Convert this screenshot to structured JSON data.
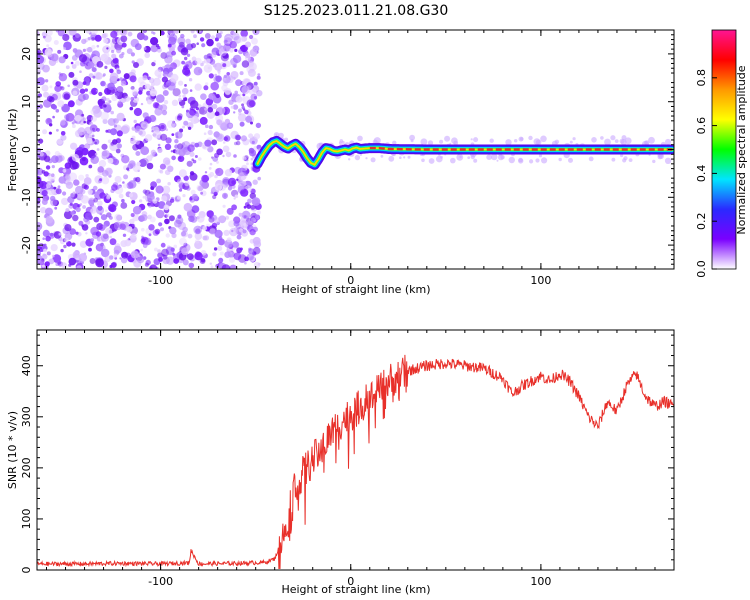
{
  "title": "S125.2023.011.21.08.G30",
  "colors": {
    "snr_line": "#e8302a",
    "spectrum_scatter": "#7a1cff",
    "trace_core": "#e03030"
  },
  "chart_data": [
    {
      "type": "heatmap",
      "name": "spectrogram",
      "xlabel": "Height of straight line (km)",
      "ylabel": "Frequency (Hz)",
      "xlim": [
        -165,
        170
      ],
      "ylim": [
        -25,
        25
      ],
      "xticks": [
        -100,
        0,
        100
      ],
      "xtick_labels": [
        "-100",
        "0",
        "100"
      ],
      "yticks": [
        -20,
        -10,
        0,
        10,
        20
      ],
      "ytick_labels": [
        "-20",
        "-10",
        "0",
        "10",
        "20"
      ],
      "noise_region_x": [
        -165,
        -48
      ],
      "trace": {
        "x": [
          -49,
          -47,
          -45,
          -43,
          -41,
          -39,
          -37,
          -35,
          -33,
          -31,
          -29,
          -27,
          -25,
          -23,
          -21,
          -19,
          -17,
          -15,
          -13,
          -11,
          -9,
          -7,
          -5,
          -3,
          -1,
          1,
          3,
          5,
          10,
          15,
          20,
          40,
          60,
          80,
          100,
          120,
          140,
          160,
          169
        ],
        "y": [
          -3,
          -1.5,
          -0.3,
          0.8,
          1.5,
          1.8,
          1.2,
          0.6,
          0.2,
          0.8,
          1.2,
          0.5,
          -0.5,
          -1.8,
          -2.8,
          -3.2,
          -2.0,
          -0.6,
          0.3,
          0.1,
          -0.3,
          -0.4,
          -0.2,
          0.0,
          -0.2,
          0.2,
          0.4,
          0.1,
          0.3,
          0.3,
          0.1,
          0.0,
          0.0,
          0.0,
          0.0,
          0.0,
          0.0,
          0.0,
          0.0
        ]
      },
      "colorbar": {
        "label": "Normalized spectral amplitude",
        "range": [
          0,
          1
        ],
        "ticks": [
          0.0,
          0.2,
          0.4,
          0.6,
          0.8
        ],
        "tick_labels": [
          "0.0",
          "0.2",
          "0.4",
          "0.6",
          "0.8"
        ],
        "colormap": [
          "#ffffff",
          "#7a00ff",
          "#2a2aff",
          "#00e5ff",
          "#00ff00",
          "#ffff00",
          "#ff9900",
          "#ff0000",
          "#ff1493"
        ]
      },
      "grid": false
    },
    {
      "type": "line",
      "name": "snr",
      "xlabel": "Height of straight line (km)",
      "ylabel": "SNR (10 * v/v)",
      "xlim": [
        -165,
        170
      ],
      "ylim": [
        0,
        470
      ],
      "xticks": [
        -100,
        0,
        100
      ],
      "xtick_labels": [
        "-100",
        "0",
        "100"
      ],
      "yticks": [
        0,
        100,
        200,
        300,
        400
      ],
      "ytick_labels": [
        "0",
        "100",
        "200",
        "300",
        "400"
      ],
      "x": [
        -165,
        -140,
        -120,
        -100,
        -85,
        -84,
        -80,
        -60,
        -45,
        -40,
        -35,
        -32,
        -30,
        -25,
        -20,
        -15,
        -10,
        -5,
        0,
        5,
        10,
        15,
        20,
        25,
        30,
        40,
        50,
        60,
        70,
        80,
        85,
        90,
        95,
        100,
        105,
        110,
        115,
        120,
        125,
        130,
        135,
        140,
        145,
        150,
        155,
        160,
        165,
        170
      ],
      "y": [
        12,
        12,
        13,
        12,
        14,
        38,
        12,
        13,
        15,
        22,
        70,
        130,
        160,
        190,
        215,
        240,
        270,
        290,
        305,
        320,
        335,
        350,
        370,
        380,
        390,
        400,
        405,
        400,
        395,
        375,
        345,
        360,
        370,
        380,
        370,
        385,
        370,
        340,
        300,
        280,
        330,
        310,
        360,
        385,
        340,
        320,
        330,
        320
      ],
      "grid": false
    }
  ]
}
